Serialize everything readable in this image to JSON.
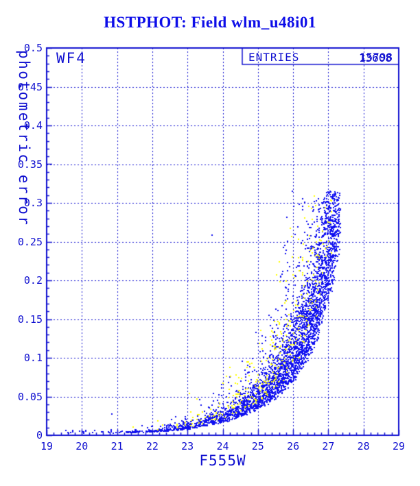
{
  "colors": {
    "axis": "#1010d0",
    "grid": "#1010d0",
    "title": "#0d0de8",
    "point_blue": "#0f0ff0",
    "point_yellow": "#ffff00",
    "background": "#ffffff"
  },
  "chart_data": {
    "type": "scatter",
    "title": "HSTPHOT: Field wlm_u48i01",
    "panel_label": "WF4",
    "stats_box": {
      "label": "ENTRIES",
      "values": [
        "15798",
        "13608"
      ]
    },
    "xlabel": "F555W",
    "ylabel": "photometric error",
    "xlim": [
      19,
      29
    ],
    "ylim": [
      0,
      0.5
    ],
    "x_major_ticks": [
      19,
      20,
      21,
      22,
      23,
      24,
      25,
      26,
      27,
      28,
      29
    ],
    "x_tick_labels": [
      "19",
      "20",
      "21",
      "22",
      "23",
      "24",
      "25",
      "26",
      "27",
      "28",
      "29"
    ],
    "x_minor_step": 0.2,
    "y_major_ticks": [
      0.5,
      0.45,
      0.4,
      0.35,
      0.3,
      0.25,
      0.2,
      0.15,
      0.1,
      0.05,
      0
    ],
    "y_tick_labels": [
      "0.5",
      "0.45",
      "0.4",
      "0.35",
      "0.3",
      "0.25",
      "0.2",
      "0.15",
      "0.1",
      "0.05",
      "0"
    ],
    "y_minor_step": 0.01,
    "grid": {
      "style": "dashed",
      "x_lines": [
        20,
        21,
        22,
        23,
        24,
        25,
        26,
        27,
        28
      ],
      "y_lines": [
        0.05,
        0.1,
        0.15,
        0.2,
        0.25,
        0.3,
        0.35,
        0.4,
        0.45
      ]
    },
    "legend": "none",
    "series": [
      {
        "name": "detections-blue",
        "color_key": "point_blue",
        "description": "Dense error-vs-magnitude sequence: error ~0.004 at F555W 22 rising steeply to ~0.31 near F555W 27.3, sharp faint-end cutoff at ~27.3 mag"
      },
      {
        "name": "flagged-yellow",
        "color_key": "point_yellow",
        "description": "Sparser points lying along and above the upper edge of the blue sequence between F555W ~21.4 and ~27.1"
      }
    ],
    "error_curve_anchors": [
      [
        19.5,
        0.003
      ],
      [
        21,
        0.0035
      ],
      [
        22,
        0.0048
      ],
      [
        23,
        0.0085
      ],
      [
        24,
        0.017
      ],
      [
        25,
        0.034
      ],
      [
        26,
        0.072
      ],
      [
        26.5,
        0.108
      ],
      [
        27,
        0.175
      ],
      [
        27.35,
        0.26
      ]
    ],
    "scatter_spec": {
      "seed": 7654321,
      "main_blue": {
        "count": 3300,
        "m_min": 21.0,
        "m_span": 6.35,
        "m_pow": 0.3,
        "spread": 0.6,
        "tail_prob": 0.07,
        "tail_max": 2.6,
        "max_err": 0.315,
        "max_mag": 27.35
      },
      "bottom_blue": {
        "count": 150,
        "m_min": 21.25,
        "m_span": 1.85
      },
      "bright_blue": {
        "count": 22,
        "m_min": 19.55,
        "m_span": 1.6,
        "e_min": 0.0025,
        "e_span": 0.0045
      },
      "yellow": {
        "count": 300,
        "m_min": 21.35,
        "m_span": 5.75,
        "m_pow": 0.36,
        "base": 1.25,
        "spread": 1.15,
        "tail_prob": 0.05,
        "tail_max": 1.6,
        "max_err": 0.31,
        "max_mag": 27.15
      }
    },
    "outliers_blue": [
      [
        19.62,
        0.003
      ],
      [
        19.75,
        0.0045
      ],
      [
        20.05,
        0.0042
      ],
      [
        20.3,
        0.0035
      ],
      [
        20.55,
        0.004
      ],
      [
        20.85,
        0.027
      ],
      [
        23.7,
        0.258
      ]
    ],
    "outliers_yellow": [
      [
        21.45,
        0.011
      ],
      [
        22.15,
        0.019
      ],
      [
        23.05,
        0.054
      ]
    ]
  }
}
